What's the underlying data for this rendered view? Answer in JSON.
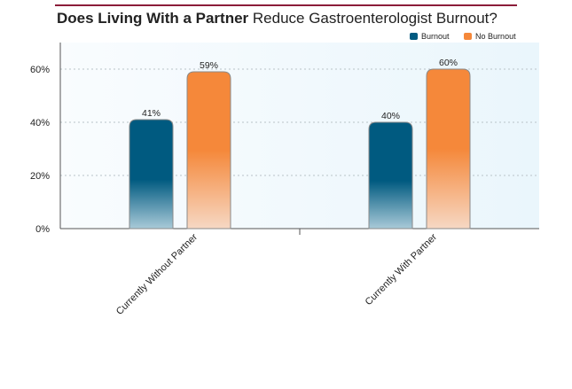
{
  "chart_data": {
    "type": "bar",
    "title_bold": "Does Living With a Partner",
    "title_rest": " Reduce Gastroenterologist Burnout?",
    "categories": [
      "Currently Without Partner",
      "Currently With Partner"
    ],
    "series": [
      {
        "name": "Burnout",
        "values": [
          41,
          40
        ],
        "labels": [
          "41%",
          "40%"
        ],
        "color": "#005a80"
      },
      {
        "name": "No Burnout",
        "values": [
          59,
          60
        ],
        "labels": [
          "59%",
          "60%"
        ],
        "color": "#f5883a"
      }
    ],
    "ylim": [
      0,
      70
    ],
    "yticks": [
      0,
      20,
      40,
      60
    ],
    "ytick_labels": [
      "0%",
      "20%",
      "40%",
      "60%"
    ],
    "grid": true,
    "legend_position": "top-right"
  }
}
